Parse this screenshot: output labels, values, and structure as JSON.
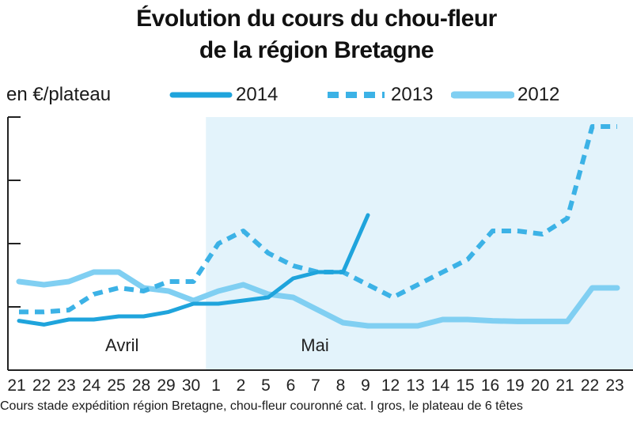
{
  "title": {
    "line1": "Évolution du cours du chou-fleur",
    "line2": "de la région Bretagne"
  },
  "unit_label": "en €/plateau",
  "legend": [
    {
      "label": "2014",
      "style": "solid",
      "color": "#1fa4dc"
    },
    {
      "label": "2013",
      "style": "dashed",
      "color": "#3cb2e6"
    },
    {
      "label": "2012",
      "style": "solid-light",
      "color": "#80cff2"
    }
  ],
  "month_labels": [
    "Avril",
    "Mai"
  ],
  "footnote": "Cours stade expédition région Bretagne, chou-fleur couronné cat. I gros, le plateau de 6 têtes",
  "colors": {
    "plot_bg_april": "#ffffff",
    "plot_bg_may": "#e3f3fb",
    "axis": "#222222",
    "series_2014": "#1fa4dc",
    "series_2013": "#3cb2e6",
    "series_2012": "#80cff2"
  },
  "chart_data": {
    "type": "line",
    "ylabel": "en €/plateau",
    "ylim": [
      0,
      4
    ],
    "yticks": [
      1,
      2,
      3,
      4
    ],
    "ytick_labels": "not shown",
    "grid": false,
    "legend_position": "top",
    "categories": [
      "21",
      "22",
      "23",
      "24",
      "25",
      "28",
      "29",
      "30",
      "1",
      "2",
      "5",
      "6",
      "7",
      "8",
      "9",
      "12",
      "13",
      "14",
      "15",
      "16",
      "19",
      "20",
      "21",
      "22",
      "23"
    ],
    "month_spans": [
      {
        "label": "Avril",
        "from": "21",
        "to": "30"
      },
      {
        "label": "Mai",
        "from": "1",
        "to": "23"
      }
    ],
    "series": [
      {
        "name": "2014",
        "values": [
          0.78,
          0.72,
          0.8,
          0.8,
          0.85,
          0.85,
          0.92,
          1.05,
          1.05,
          1.1,
          1.15,
          1.45,
          1.55,
          1.55,
          2.45,
          null,
          null,
          null,
          null,
          null,
          null,
          null,
          null,
          null,
          null
        ]
      },
      {
        "name": "2013",
        "values": [
          0.92,
          0.92,
          0.95,
          1.2,
          1.3,
          1.25,
          1.4,
          1.4,
          2.0,
          2.2,
          1.85,
          1.65,
          1.55,
          1.55,
          1.35,
          1.15,
          1.35,
          1.55,
          1.75,
          2.2,
          2.2,
          2.15,
          2.4,
          3.85,
          3.85
        ]
      },
      {
        "name": "2012",
        "values": [
          1.4,
          1.35,
          1.4,
          1.55,
          1.55,
          1.3,
          1.25,
          1.1,
          1.25,
          1.35,
          1.2,
          1.15,
          0.95,
          0.75,
          0.7,
          0.7,
          0.7,
          0.8,
          0.8,
          0.78,
          0.77,
          0.77,
          0.77,
          1.3,
          1.3
        ]
      }
    ]
  }
}
